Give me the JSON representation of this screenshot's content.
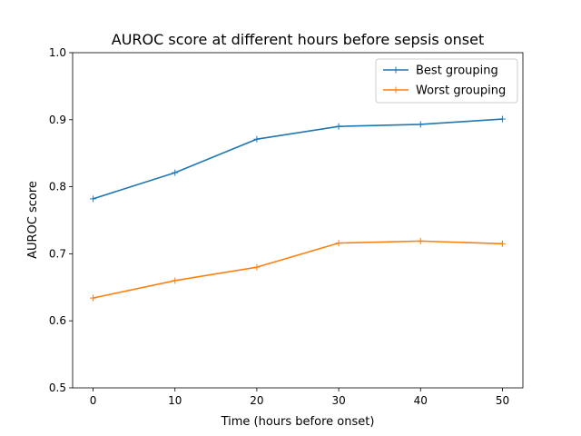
{
  "chart_data": {
    "type": "line",
    "title": "AUROC score at different hours before sepsis onset",
    "xlabel": "Time (hours before onset)",
    "ylabel": "AUROC score",
    "x": [
      0,
      10,
      20,
      30,
      40,
      50
    ],
    "xlim": [
      -2.5,
      52.5
    ],
    "ylim": [
      0.5,
      1.0
    ],
    "xticks": [
      0,
      10,
      20,
      30,
      40,
      50
    ],
    "yticks": [
      "0.5",
      "0.6",
      "0.7",
      "0.8",
      "0.9",
      "1.0"
    ],
    "grid": false,
    "legend_position": "top-right",
    "series": [
      {
        "name": "Best grouping",
        "color": "#1f77b4",
        "marker": "plus",
        "values": [
          0.782,
          0.821,
          0.871,
          0.89,
          0.893,
          0.901
        ]
      },
      {
        "name": "Worst grouping",
        "color": "#ff7f0e",
        "marker": "plus",
        "values": [
          0.634,
          0.66,
          0.68,
          0.716,
          0.719,
          0.715
        ]
      }
    ]
  }
}
